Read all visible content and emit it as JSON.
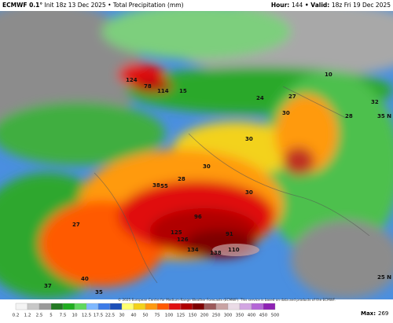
{
  "header": {
    "model": "ECMWF 0.1°",
    "init": "Init 18z 13 Dec 2025 • Total Precipitation (mm)",
    "hour_label": "Hour:",
    "hour": "144",
    "valid_label": "• Valid:",
    "valid": "18z Fri 19 Dec 2025"
  },
  "map": {
    "labels": [
      "124",
      "78",
      "114",
      "15",
      "24",
      "27",
      "10",
      "32",
      "28",
      "35 N",
      "30",
      "30",
      "30",
      "28",
      "30",
      "96",
      "91",
      "125",
      "126",
      "134",
      "138",
      "110",
      "38",
      "55",
      "27",
      "25 N",
      "40",
      "35",
      "37"
    ]
  },
  "legend": {
    "labels": [
      0.2,
      1.2,
      2.5,
      5,
      7.5,
      10,
      12.5,
      17.5,
      22.5,
      30,
      40,
      50,
      75,
      100,
      125,
      150,
      200,
      250,
      300,
      350,
      400,
      450,
      500
    ],
    "colors": [
      "#f4f4f4",
      "#c8c8c8",
      "#9a9a9a",
      "#237a23",
      "#1fae1f",
      "#5fd85f",
      "#7fb8ff",
      "#3d7be8",
      "#1c4fb8",
      "#ffff70",
      "#f3d21a",
      "#ff9a10",
      "#ff5a00",
      "#e01010",
      "#b00000",
      "#7e0000",
      "#9c5a5a",
      "#c9a3a3",
      "#eadbe6",
      "#d2a6e2",
      "#b466d6",
      "#8e22b4"
    ]
  },
  "footer": {
    "copyright": "© 2025 European Centre for Medium-Range Weather Forecasts (ECMWF). This service is based on data and products of the ECMWF.",
    "max_label": "Max:",
    "max": "269"
  }
}
